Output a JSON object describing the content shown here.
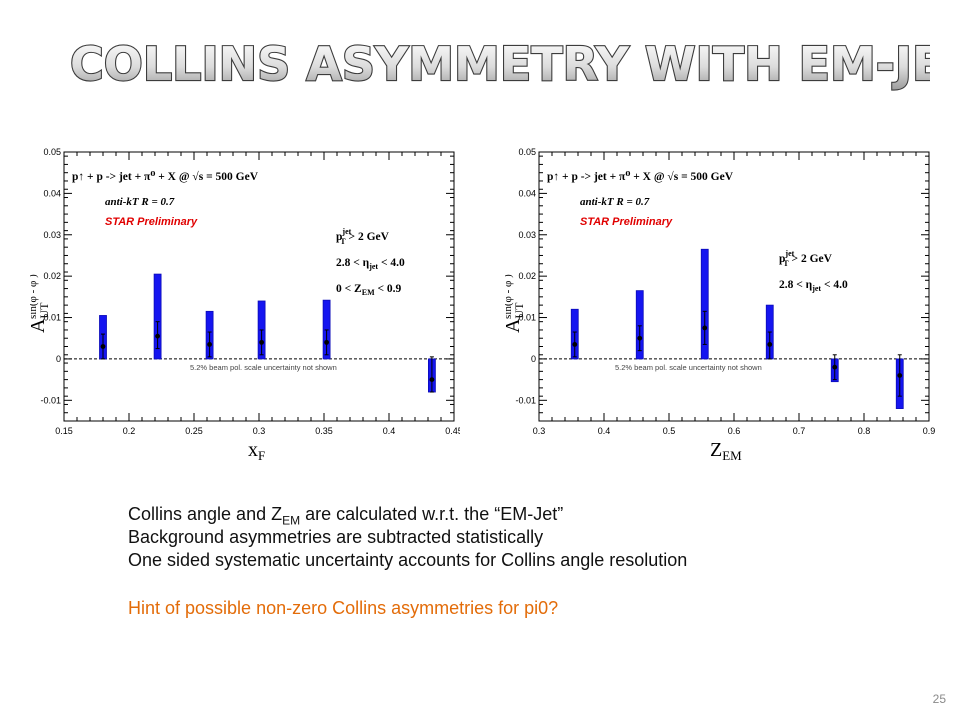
{
  "slide": {
    "title": "COLLINS ASYMMETRY WITH EM-JET",
    "page_number": "25",
    "bullets": {
      "line1_a": "Collins angle and Z",
      "line1_sub": "EM",
      "line1_b": " are calculated w.r.t. the “EM-Jet”",
      "line2": "Background asymmetries are subtracted statistically",
      "line3": "One sided systematic uncertainty accounts for Collins angle resolution",
      "hint": "Hint of possible non-zero Collins asymmetries for pi0?"
    },
    "colors": {
      "hint": "#e36c09",
      "star": "#e00000",
      "points": "#1515f0"
    }
  },
  "chart_data": [
    {
      "type": "scatter",
      "xlabel": "x",
      "xlabel_sub": "F",
      "ylabel": "A",
      "ylabel_sub": "UT",
      "ylabel_super": "sin(φ - φ )",
      "xlim": [
        0.15,
        0.45
      ],
      "ylim": [
        -0.015,
        0.05
      ],
      "xticks": [
        0.15,
        0.2,
        0.25,
        0.3,
        0.35,
        0.4,
        0.45
      ],
      "xtick_labels": [
        "0.15",
        "0.2",
        "0.25",
        "0.3",
        "0.35",
        "0.4",
        "0.45"
      ],
      "yticks": [
        -0.01,
        0,
        0.01,
        0.02,
        0.03,
        0.04,
        0.05
      ],
      "ytick_labels": [
        "-0.01",
        "0",
        "0.01",
        "0.02",
        "0.03",
        "0.04",
        "0.05"
      ],
      "reaction": "p↑ + p -> jet + π⁰ + X @ √s = 500 GeV",
      "algorithm": "anti-kT R = 0.7",
      "preliminary": "STAR Preliminary",
      "cuts": [
        "p_T^jet > 2 GeV",
        "2.8 < η_jet < 4.0",
        "0 < Z_EM < 0.9"
      ],
      "note": "5.2% beam pol. scale uncertainty not shown",
      "points": [
        {
          "x": 0.18,
          "y": 0.003,
          "err_lo": 0.003,
          "err_hi": 0.003,
          "sys_lo": 0.003,
          "sys_hi": 0.0075
        },
        {
          "x": 0.222,
          "y": 0.0055,
          "err_lo": 0.003,
          "err_hi": 0.0035,
          "sys_lo": 0.0055,
          "sys_hi": 0.015
        },
        {
          "x": 0.262,
          "y": 0.0035,
          "err_lo": 0.003,
          "err_hi": 0.003,
          "sys_lo": 0.0035,
          "sys_hi": 0.008
        },
        {
          "x": 0.302,
          "y": 0.004,
          "err_lo": 0.003,
          "err_hi": 0.003,
          "sys_lo": 0.004,
          "sys_hi": 0.01
        },
        {
          "x": 0.352,
          "y": 0.004,
          "err_lo": 0.003,
          "err_hi": 0.003,
          "sys_lo": 0.004,
          "sys_hi": 0.0102
        },
        {
          "x": 0.433,
          "y": -0.005,
          "err_lo": 0.003,
          "err_hi": 0.0055,
          "sys_lo": 0.003,
          "sys_hi": 0.005
        }
      ]
    },
    {
      "type": "scatter",
      "xlabel": "Z",
      "xlabel_sub": "EM",
      "ylabel": "A",
      "ylabel_sub": "UT",
      "ylabel_super": "sin(φ - φ )",
      "xlim": [
        0.3,
        0.9
      ],
      "ylim": [
        -0.015,
        0.05
      ],
      "xticks": [
        0.3,
        0.4,
        0.5,
        0.6,
        0.7,
        0.8,
        0.9
      ],
      "xtick_labels": [
        "0.3",
        "0.4",
        "0.5",
        "0.6",
        "0.7",
        "0.8",
        "0.9"
      ],
      "yticks": [
        -0.01,
        0,
        0.01,
        0.02,
        0.03,
        0.04,
        0.05
      ],
      "ytick_labels": [
        "-0.01",
        "0",
        "0.01",
        "0.02",
        "0.03",
        "0.04",
        "0.05"
      ],
      "reaction": "p↑ + p -> jet + π⁰ + X @ √s = 500 GeV",
      "algorithm": "anti-kT R = 0.7",
      "preliminary": "STAR Preliminary",
      "cuts": [
        "p_T^jet > 2 GeV",
        "2.8 < η_jet < 4.0"
      ],
      "note": "5.2% beam pol. scale uncertainty not shown",
      "points": [
        {
          "x": 0.355,
          "y": 0.0035,
          "err_lo": 0.003,
          "err_hi": 0.003,
          "sys_lo": 0.0035,
          "sys_hi": 0.0085
        },
        {
          "x": 0.455,
          "y": 0.005,
          "err_lo": 0.003,
          "err_hi": 0.003,
          "sys_lo": 0.005,
          "sys_hi": 0.0115
        },
        {
          "x": 0.555,
          "y": 0.0075,
          "err_lo": 0.004,
          "err_hi": 0.004,
          "sys_lo": 0.0075,
          "sys_hi": 0.019
        },
        {
          "x": 0.655,
          "y": 0.0035,
          "err_lo": 0.0035,
          "err_hi": 0.003,
          "sys_lo": 0.0035,
          "sys_hi": 0.0095
        },
        {
          "x": 0.755,
          "y": -0.002,
          "err_lo": 0.003,
          "err_hi": 0.003,
          "sys_lo": 0.0035,
          "sys_hi": 0.002
        },
        {
          "x": 0.855,
          "y": -0.004,
          "err_lo": 0.005,
          "err_hi": 0.005,
          "sys_lo": 0.008,
          "sys_hi": 0.004
        }
      ]
    }
  ]
}
